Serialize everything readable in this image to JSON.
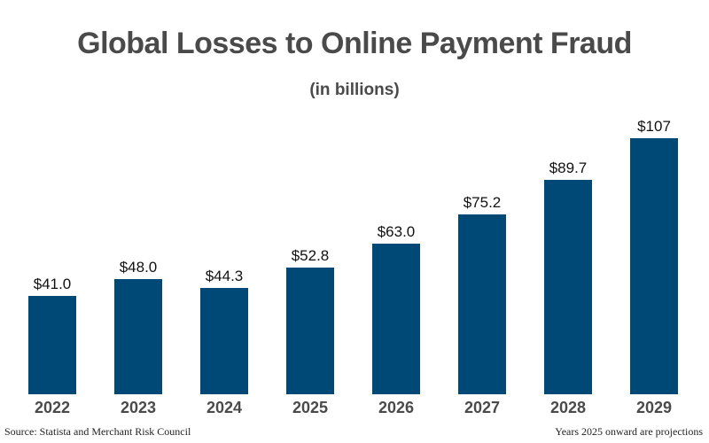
{
  "chart_data": {
    "type": "bar",
    "title": "Global Losses to Online Payment Fraud",
    "subtitle": "(in billions)",
    "categories": [
      "2022",
      "2023",
      "2024",
      "2025",
      "2026",
      "2027",
      "2028",
      "2029"
    ],
    "values": [
      41.0,
      48.0,
      44.3,
      52.8,
      63.0,
      75.2,
      89.7,
      107
    ],
    "value_labels": [
      "$41.0",
      "$48.0",
      "$44.3",
      "$52.8",
      "$63.0",
      "$75.2",
      "$89.7",
      "$107"
    ],
    "xlabel": "",
    "ylabel": "",
    "ylim": [
      0,
      107
    ],
    "grid": false,
    "legend": "none",
    "bar_color": "#004976"
  },
  "footer": {
    "source": "Source: Statista and Merchant Risk Council",
    "note": "Years 2025 onward are projections"
  }
}
